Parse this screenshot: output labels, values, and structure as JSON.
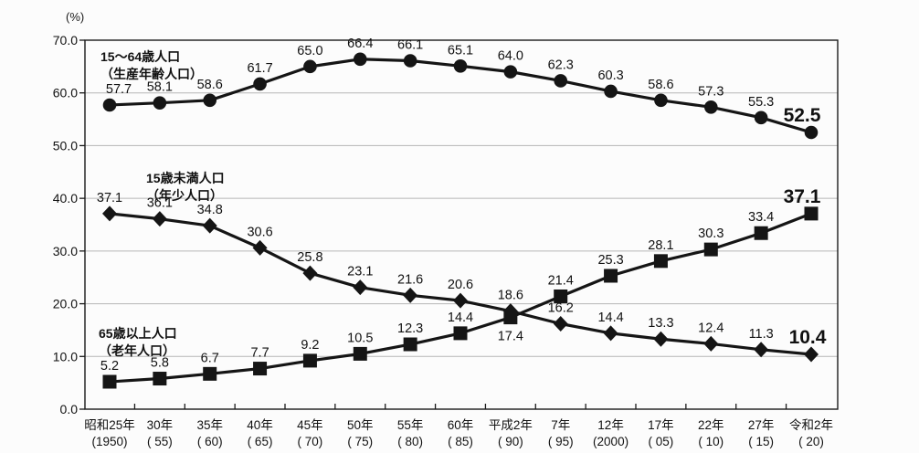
{
  "chart_data": {
    "type": "line",
    "title": "",
    "unit": "(%)",
    "xlabel": "",
    "ylabel": "",
    "ylim": [
      0,
      70
    ],
    "ytick_step": 10,
    "yticks": [
      70,
      60,
      50,
      40,
      30,
      20,
      10,
      0
    ],
    "grid": true,
    "legend_position": "inline-annotations",
    "colors": {
      "series": "#151515",
      "grid": "#b6b6b6",
      "border": "#1a1a1a",
      "text": "#111111",
      "background": "#fcfcfc"
    },
    "categories": [
      {
        "label": "昭和25年",
        "sub": "(1950)"
      },
      {
        "label": "30年",
        "sub": "( 55)"
      },
      {
        "label": "35年",
        "sub": "( 60)"
      },
      {
        "label": "40年",
        "sub": "( 65)"
      },
      {
        "label": "45年",
        "sub": "( 70)"
      },
      {
        "label": "50年",
        "sub": "( 75)"
      },
      {
        "label": "55年",
        "sub": "( 80)"
      },
      {
        "label": "60年",
        "sub": "( 85)"
      },
      {
        "label": "平成2年",
        "sub": "( 90)"
      },
      {
        "label": "7年",
        "sub": "( 95)"
      },
      {
        "label": "12年",
        "sub": "(2000)"
      },
      {
        "label": "17年",
        "sub": "( 05)"
      },
      {
        "label": "22年",
        "sub": "( 10)"
      },
      {
        "label": "27年",
        "sub": "( 15)"
      },
      {
        "label": "令和2年",
        "sub": "( 20)"
      }
    ],
    "series": [
      {
        "name": "15～64歳人口（生産年齢人口）",
        "annotation": [
          "15～64歳人口",
          "（生産年齢人口）"
        ],
        "marker": "circle",
        "emphasize_last": true,
        "values": [
          57.7,
          58.1,
          58.6,
          61.7,
          65.0,
          66.4,
          66.1,
          65.1,
          64.0,
          62.3,
          60.3,
          58.6,
          57.3,
          55.3,
          52.5
        ]
      },
      {
        "name": "15歳未満人口（年少人口）",
        "annotation": [
          "15歳未満人口",
          "（年少人口）"
        ],
        "marker": "diamond",
        "emphasize_last": true,
        "values": [
          37.1,
          36.1,
          34.8,
          30.6,
          25.8,
          23.1,
          21.6,
          20.6,
          18.6,
          16.2,
          14.4,
          13.3,
          12.4,
          11.3,
          10.4
        ]
      },
      {
        "name": "65歳以上人口（老年人口）",
        "annotation": [
          "65歳以上人口",
          "（老年人口）"
        ],
        "marker": "square",
        "emphasize_last": true,
        "label_below_indices": [
          8
        ],
        "values": [
          5.2,
          5.8,
          6.7,
          7.7,
          9.2,
          10.5,
          12.3,
          14.4,
          17.4,
          21.4,
          25.3,
          28.1,
          30.3,
          33.4,
          37.1
        ]
      }
    ]
  }
}
